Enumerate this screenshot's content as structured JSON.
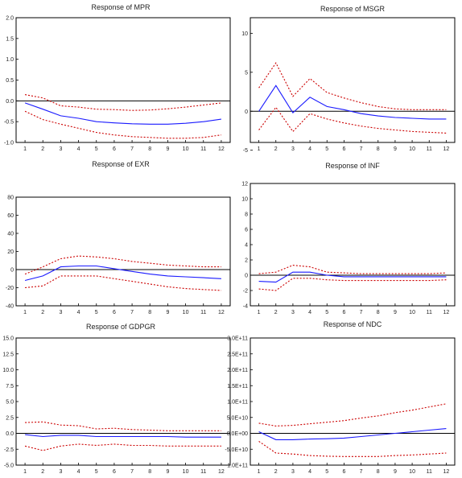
{
  "chart_data": [
    {
      "type": "line",
      "title": "Response of  MPR",
      "x": [
        1,
        2,
        3,
        4,
        5,
        6,
        7,
        8,
        9,
        10,
        11,
        12
      ],
      "ylim": [
        -1.0,
        2.0
      ],
      "yticks": [
        "2.0",
        "1.5",
        "1.0",
        "0.5",
        "0.0",
        "-0.5",
        "-1.0"
      ],
      "ytick_values": [
        2.0,
        1.5,
        1.0,
        0.5,
        0.0,
        -0.5,
        -1.0
      ],
      "series": [
        {
          "role": "response",
          "color": "#1a1aff",
          "values": [
            -0.05,
            -0.2,
            -0.36,
            -0.42,
            -0.5,
            -0.53,
            -0.55,
            -0.56,
            -0.56,
            -0.54,
            -0.5,
            -0.44
          ]
        },
        {
          "role": "upper band",
          "color": "#cc0000",
          "values": [
            0.15,
            0.07,
            -0.12,
            -0.15,
            -0.2,
            -0.21,
            -0.23,
            -0.22,
            -0.19,
            -0.15,
            -0.1,
            -0.05
          ]
        },
        {
          "role": "lower band",
          "color": "#cc0000",
          "values": [
            -0.25,
            -0.45,
            -0.56,
            -0.66,
            -0.76,
            -0.82,
            -0.86,
            -0.88,
            -0.9,
            -0.9,
            -0.88,
            -0.82
          ]
        }
      ]
    },
    {
      "type": "line",
      "title": "Response of MSGR",
      "x": [
        1,
        2,
        3,
        4,
        5,
        6,
        7,
        8,
        9,
        10,
        11,
        12
      ],
      "ylim": [
        -4,
        12
      ],
      "yticks": [
        "10",
        "5",
        "0",
        "-5"
      ],
      "ytick_values": [
        10,
        5,
        0,
        -5
      ],
      "series": [
        {
          "role": "response",
          "color": "#1a1aff",
          "values": [
            0.0,
            3.3,
            -0.2,
            1.8,
            0.6,
            0.2,
            -0.3,
            -0.6,
            -0.8,
            -0.9,
            -1.0,
            -1.0
          ]
        },
        {
          "role": "upper band",
          "color": "#cc0000",
          "values": [
            3.0,
            6.2,
            1.9,
            4.2,
            2.4,
            1.7,
            1.1,
            0.6,
            0.3,
            0.2,
            0.2,
            0.2
          ]
        },
        {
          "role": "lower band",
          "color": "#cc0000",
          "values": [
            -2.4,
            0.5,
            -2.6,
            -0.3,
            -1.0,
            -1.5,
            -1.9,
            -2.2,
            -2.4,
            -2.6,
            -2.7,
            -2.8
          ]
        }
      ]
    },
    {
      "type": "line",
      "title": "Response of EXR",
      "x": [
        1,
        2,
        3,
        4,
        5,
        6,
        7,
        8,
        9,
        10,
        11,
        12
      ],
      "ylim": [
        -40,
        80
      ],
      "yticks": [
        "80",
        "60",
        "40",
        "20",
        "0",
        "-20",
        "-40"
      ],
      "ytick_values": [
        80,
        60,
        40,
        20,
        0,
        -20,
        -40
      ],
      "series": [
        {
          "role": "response",
          "color": "#1a1aff",
          "values": [
            -12,
            -7,
            3,
            4,
            4,
            1,
            -2,
            -5,
            -7,
            -8,
            -9,
            -10
          ]
        },
        {
          "role": "upper band",
          "color": "#cc0000",
          "values": [
            -5,
            3,
            12,
            15,
            14,
            12,
            9,
            7,
            5,
            4,
            3,
            3
          ]
        },
        {
          "role": "lower band",
          "color": "#cc0000",
          "values": [
            -20,
            -18,
            -7,
            -7,
            -7,
            -10,
            -13,
            -16,
            -19,
            -21,
            -22,
            -23
          ]
        }
      ]
    },
    {
      "type": "line",
      "title": "Response of INF",
      "x": [
        1,
        2,
        3,
        4,
        5,
        6,
        7,
        8,
        9,
        10,
        11,
        12
      ],
      "ylim": [
        -4,
        12
      ],
      "yticks": [
        "12",
        "10",
        "8",
        "6",
        "4",
        "2",
        "0",
        "-2",
        "-4"
      ],
      "ytick_values": [
        12,
        10,
        8,
        6,
        4,
        2,
        0,
        -2,
        -4
      ],
      "series": [
        {
          "role": "response",
          "color": "#1a1aff",
          "values": [
            -0.8,
            -0.9,
            0.4,
            0.4,
            0.0,
            -0.2,
            -0.2,
            -0.2,
            -0.2,
            -0.2,
            -0.2,
            -0.2
          ]
        },
        {
          "role": "upper band",
          "color": "#cc0000",
          "values": [
            0.2,
            0.4,
            1.3,
            1.1,
            0.4,
            0.3,
            0.2,
            0.2,
            0.2,
            0.2,
            0.2,
            0.3
          ]
        },
        {
          "role": "lower band",
          "color": "#cc0000",
          "values": [
            -1.8,
            -2.0,
            -0.4,
            -0.4,
            -0.6,
            -0.7,
            -0.7,
            -0.7,
            -0.7,
            -0.7,
            -0.7,
            -0.6
          ]
        }
      ]
    },
    {
      "type": "line",
      "title": "Response of GDPGR",
      "x": [
        1,
        2,
        3,
        4,
        5,
        6,
        7,
        8,
        9,
        10,
        11,
        12
      ],
      "ylim": [
        -5.0,
        15.0
      ],
      "yticks": [
        "15.0",
        "12.5",
        "10.0",
        "7.5",
        "5.0",
        "2.5",
        "0.0",
        "-2.5",
        "-5.0"
      ],
      "ytick_values": [
        15.0,
        12.5,
        10.0,
        7.5,
        5.0,
        2.5,
        0.0,
        -2.5,
        -5.0
      ],
      "series": [
        {
          "role": "response",
          "color": "#1a1aff",
          "values": [
            -0.2,
            -0.5,
            -0.3,
            -0.3,
            -0.5,
            -0.5,
            -0.5,
            -0.5,
            -0.5,
            -0.6,
            -0.6,
            -0.6
          ]
        },
        {
          "role": "upper band",
          "color": "#cc0000",
          "values": [
            1.7,
            1.8,
            1.3,
            1.2,
            0.7,
            0.8,
            0.6,
            0.5,
            0.4,
            0.4,
            0.4,
            0.4
          ]
        },
        {
          "role": "lower band",
          "color": "#cc0000",
          "values": [
            -2.0,
            -2.7,
            -2.0,
            -1.7,
            -1.9,
            -1.7,
            -1.9,
            -1.9,
            -2.0,
            -2.0,
            -2.0,
            -2.0
          ]
        }
      ]
    },
    {
      "type": "line",
      "title": "Response of NDC",
      "x": [
        1,
        2,
        3,
        4,
        5,
        6,
        7,
        8,
        9,
        10,
        11,
        12
      ],
      "ylim": [
        -100000000000.0,
        300000000000.0
      ],
      "yticks": [
        "3.0E+11",
        "2.5E+11",
        "2.0E+11",
        "1.5E+11",
        "1.0E+11",
        "5.0E+10",
        "0.0E+00",
        "-5.0E+10",
        "-1.0E+11"
      ],
      "ytick_values": [
        300000000000.0,
        250000000000.0,
        200000000000.0,
        150000000000.0,
        100000000000.0,
        50000000000.0,
        0,
        -50000000000.0,
        -100000000000.0
      ],
      "series": [
        {
          "role": "response",
          "color": "#1a1aff",
          "values": [
            5000000000.0,
            -20000000000.0,
            -20000000000.0,
            -18000000000.0,
            -17000000000.0,
            -15000000000.0,
            -10000000000.0,
            -5000000000.0,
            0,
            5000000000.0,
            10000000000.0,
            15000000000.0
          ]
        },
        {
          "role": "upper band",
          "color": "#cc0000",
          "values": [
            32000000000.0,
            23000000000.0,
            25000000000.0,
            30000000000.0,
            35000000000.0,
            40000000000.0,
            48000000000.0,
            55000000000.0,
            65000000000.0,
            73000000000.0,
            83000000000.0,
            93000000000.0
          ]
        },
        {
          "role": "lower band",
          "color": "#cc0000",
          "values": [
            -25000000000.0,
            -62000000000.0,
            -65000000000.0,
            -70000000000.0,
            -72000000000.0,
            -73000000000.0,
            -73000000000.0,
            -73000000000.0,
            -70000000000.0,
            -68000000000.0,
            -65000000000.0,
            -62000000000.0
          ]
        }
      ]
    }
  ]
}
